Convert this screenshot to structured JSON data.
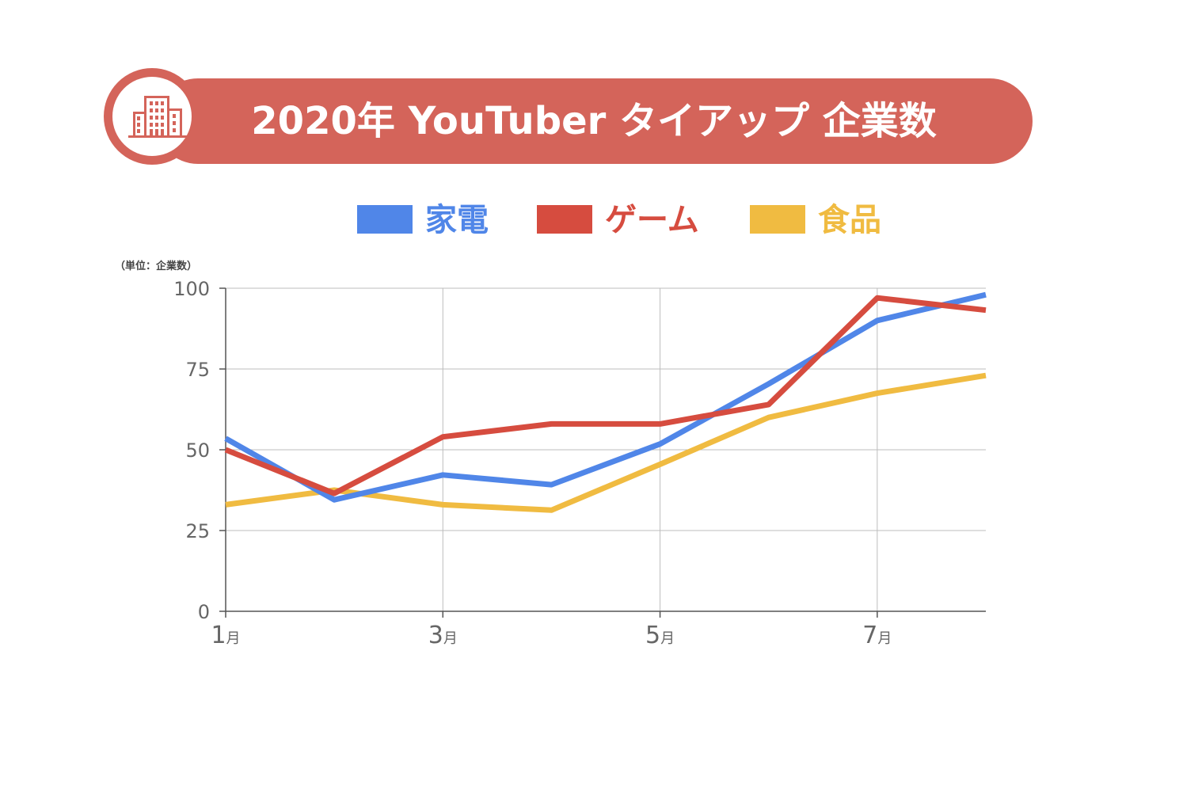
{
  "title": {
    "text": "2020年 YouTuber タイアップ 企業数",
    "icon": "office-building-icon",
    "color": "#d4645a"
  },
  "legend": [
    {
      "label": "家電",
      "color": "#5086e8"
    },
    {
      "label": "ゲーム",
      "color": "#d64c3f"
    },
    {
      "label": "食品",
      "color": "#f0bb41"
    }
  ],
  "unit_label": "（単位：企業数）",
  "chart_data": {
    "type": "line",
    "x": [
      1,
      2,
      3,
      4,
      5,
      6,
      7,
      8
    ],
    "xlim": [
      1,
      8
    ],
    "ylim": [
      0,
      100
    ],
    "y_ticks": [
      0,
      25,
      50,
      75,
      100
    ],
    "x_ticks": [
      {
        "value": 1,
        "num": "1",
        "unit": "月"
      },
      {
        "value": 3,
        "num": "3",
        "unit": "月"
      },
      {
        "value": 5,
        "num": "5",
        "unit": "月"
      },
      {
        "value": 7,
        "num": "7",
        "unit": "月"
      }
    ],
    "grid": true,
    "series": [
      {
        "name": "家電",
        "color": "#5086e8",
        "values": [
          53.5,
          34.5,
          42.2,
          39.2,
          51.8,
          70.4,
          90,
          98
        ]
      },
      {
        "name": "ゲーム",
        "color": "#d64c3f",
        "values": [
          50,
          36.5,
          54,
          58,
          58,
          64,
          97,
          93.2
        ]
      },
      {
        "name": "食品",
        "color": "#f0bb41",
        "values": [
          33,
          37.5,
          33,
          31.3,
          45.5,
          60,
          67.5,
          73
        ]
      }
    ]
  }
}
